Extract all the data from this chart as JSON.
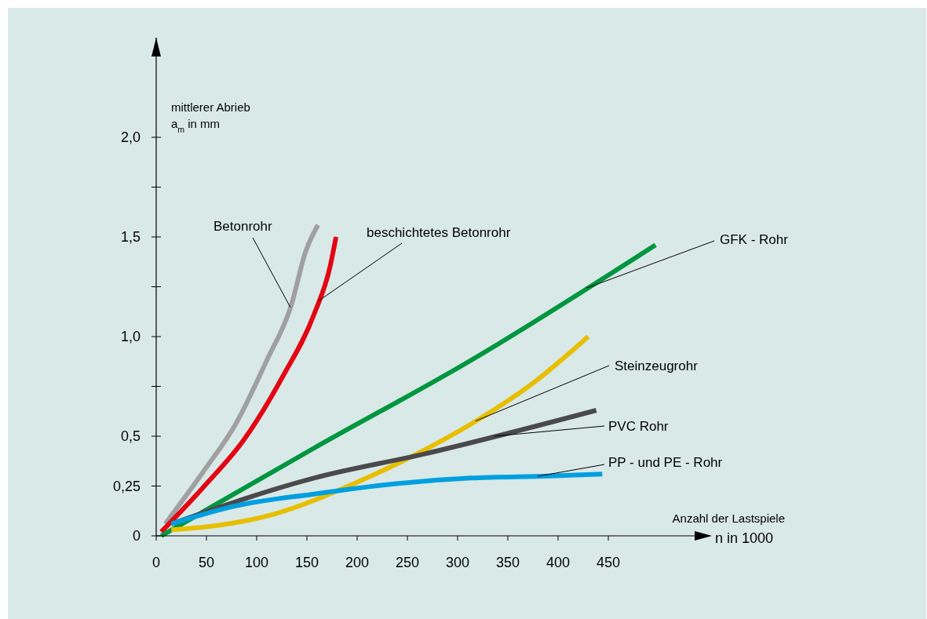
{
  "chart_data": {
    "type": "line",
    "xlabel": "Anzahl der Lastspiele n in 1000",
    "ylabel": "mittlerer Abrieb a$_{m}$ in mm",
    "xlim": [
      0,
      550
    ],
    "ylim": [
      0,
      2.5
    ],
    "xticks": [
      0,
      50,
      100,
      150,
      200,
      250,
      300,
      350,
      400,
      450
    ],
    "yticks": [
      0,
      {
        "value": 0.25,
        "label": "0,25"
      },
      {
        "value": 0.5,
        "label": "0,5"
      },
      {
        "value": 0.75,
        "label": null
      },
      {
        "value": 1,
        "label": "1,0"
      },
      {
        "value": 1.25,
        "label": null
      },
      {
        "value": 1.5,
        "label": "1,5"
      },
      {
        "value": 1.75,
        "label": null
      },
      {
        "value": 2,
        "label": "2,0"
      }
    ],
    "grid": false,
    "marker": "none",
    "line_style": "solid",
    "series": [
      {
        "name": "Betonrohr",
        "color": "#a0a0a0",
        "x": [
          9,
          48,
          79,
          110,
          134,
          149,
          161
        ],
        "values": [
          0.06,
          0.33,
          0.56,
          0.88,
          1.15,
          1.43,
          1.56
        ]
      },
      {
        "name": "beschichtetes Betonrohr",
        "color": "#e30613",
        "x": [
          5,
          48,
          87,
          126,
          157,
          173,
          179
        ],
        "values": [
          0.02,
          0.25,
          0.48,
          0.8,
          1.11,
          1.35,
          1.5
        ]
      },
      {
        "name": "GFK - Rohr",
        "color": "#00963f",
        "x": [
          5,
          157,
          313,
          497
        ],
        "values": [
          0,
          0.44,
          0.88,
          1.46
        ]
      },
      {
        "name": "Steinzeugrohr",
        "color": "#e8bf00",
        "x": [
          15,
          40,
          118,
          196,
          259,
          313,
          376,
          430
        ],
        "values": [
          0.03,
          0.04,
          0.11,
          0.26,
          0.41,
          0.56,
          0.77,
          1.0
        ]
      },
      {
        "name": "PVC  Rohr",
        "color": "#4a4a4c",
        "x": [
          15,
          157,
          266,
          438
        ],
        "values": [
          0.06,
          0.29,
          0.41,
          0.63
        ]
      },
      {
        "name": "PP - und PE - Rohr",
        "color": "#00a0e0",
        "x": [
          15,
          79,
          157,
          235,
          313,
          391,
          444
        ],
        "values": [
          0.06,
          0.15,
          0.21,
          0.26,
          0.29,
          0.3,
          0.31
        ]
      }
    ]
  }
}
